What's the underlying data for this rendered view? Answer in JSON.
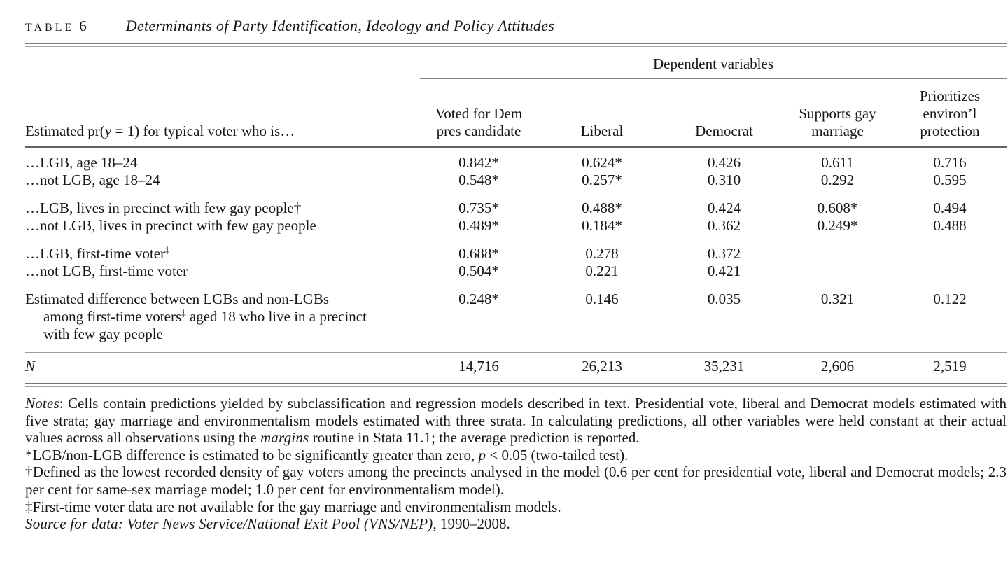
{
  "page": {
    "background": "#ffffff",
    "text_color": "#161616",
    "rule_color_dark": "#646464",
    "rule_color_gray": "#7c7c7c",
    "rule_color_light": "#a7a7a7"
  },
  "table": {
    "label": "TABLE",
    "number": "6",
    "title": "Determinants of Party Identification, Ideology and Policy Attitudes",
    "spanner": "Dependent variables",
    "stub_header_segments": [
      {
        "text": "Estimated pr("
      },
      {
        "text": "y",
        "italic": true
      },
      {
        "text": " = 1) for typical voter who is…"
      }
    ],
    "columns": [
      "Voted for Dem\npres candidate",
      "Liberal",
      "Democrat",
      "Supports gay\nmarriage",
      "Prioritizes\nenviron’l\nprotection"
    ],
    "rows": [
      {
        "label_segments": [
          {
            "text": "…LGB, age 18–24"
          }
        ],
        "values": [
          "0.842*",
          "0.624*",
          "0.426",
          "0.611",
          "0.716"
        ]
      },
      {
        "label_segments": [
          {
            "text": "…not LGB, age 18–24"
          }
        ],
        "values": [
          "0.548*",
          "0.257*",
          "0.310",
          "0.292",
          "0.595"
        ]
      },
      {
        "space_before": true,
        "label_segments": [
          {
            "text": "…LGB, lives in precinct with few gay people†"
          }
        ],
        "values": [
          "0.735*",
          "0.488*",
          "0.424",
          "0.608*",
          "0.494"
        ]
      },
      {
        "label_segments": [
          {
            "text": "…not LGB, lives in precinct with few gay people"
          }
        ],
        "values": [
          "0.489*",
          "0.184*",
          "0.362",
          "0.249*",
          "0.488"
        ]
      },
      {
        "space_before": true,
        "label_segments": [
          {
            "text": "…LGB, first-time voter"
          },
          {
            "text": "‡",
            "sup": true
          }
        ],
        "values": [
          "0.688*",
          "0.278",
          "0.372",
          "",
          ""
        ]
      },
      {
        "label_segments": [
          {
            "text": "…not LGB, first-time voter"
          }
        ],
        "values": [
          "0.504*",
          "0.221",
          "0.421",
          "",
          ""
        ]
      },
      {
        "space_before": true,
        "hanging": true,
        "label_segments": [
          {
            "text": "Estimated difference between LGBs and non-LGBs\namong first-time voters"
          },
          {
            "text": "‡",
            "sup": true
          },
          {
            "text": " aged 18 who live in a precinct\nwith few gay people"
          }
        ],
        "values": [
          "0.248*",
          "0.146",
          "0.035",
          "0.321",
          "0.122"
        ]
      }
    ],
    "n_row": {
      "label_segments": [
        {
          "text": "N",
          "italic": true
        }
      ],
      "values": [
        "14,716",
        "26,213",
        "35,231",
        "2,606",
        "2,519"
      ]
    }
  },
  "notes": {
    "paragraphs": [
      [
        {
          "text": "Notes",
          "italic": true
        },
        {
          "text": ": Cells contain predictions yielded by subclassification and regression models described in text. Presidential vote, liberal and Democrat models estimated with five strata; gay marriage and environmentalism models estimated with three strata. In calculating predictions, all other variables were held constant at their actual values across all observations using the "
        },
        {
          "text": "margins",
          "italic": true
        },
        {
          "text": " routine in Stata 11.1; the average prediction is reported."
        }
      ],
      [
        {
          "text": "*LGB/non-LGB difference is estimated to be significantly greater than zero, "
        },
        {
          "text": "p",
          "italic": true
        },
        {
          "text": " < 0.05 (two-tailed test)."
        }
      ],
      [
        {
          "text": "†Defined as the lowest recorded density of gay voters among the precincts analysed in the model (0.6 per cent for presidential vote, liberal and Democrat models; 2.3 per cent for same-sex marriage model; 1.0 per cent for environmentalism model)."
        }
      ],
      [
        {
          "text": "‡First-time voter data are not available for the gay marriage and environmentalism models."
        }
      ],
      [
        {
          "text": "Source for data: Voter News Service/National Exit Pool (VNS/NEP)",
          "italic": true
        },
        {
          "text": ", 1990–2008."
        }
      ]
    ]
  }
}
